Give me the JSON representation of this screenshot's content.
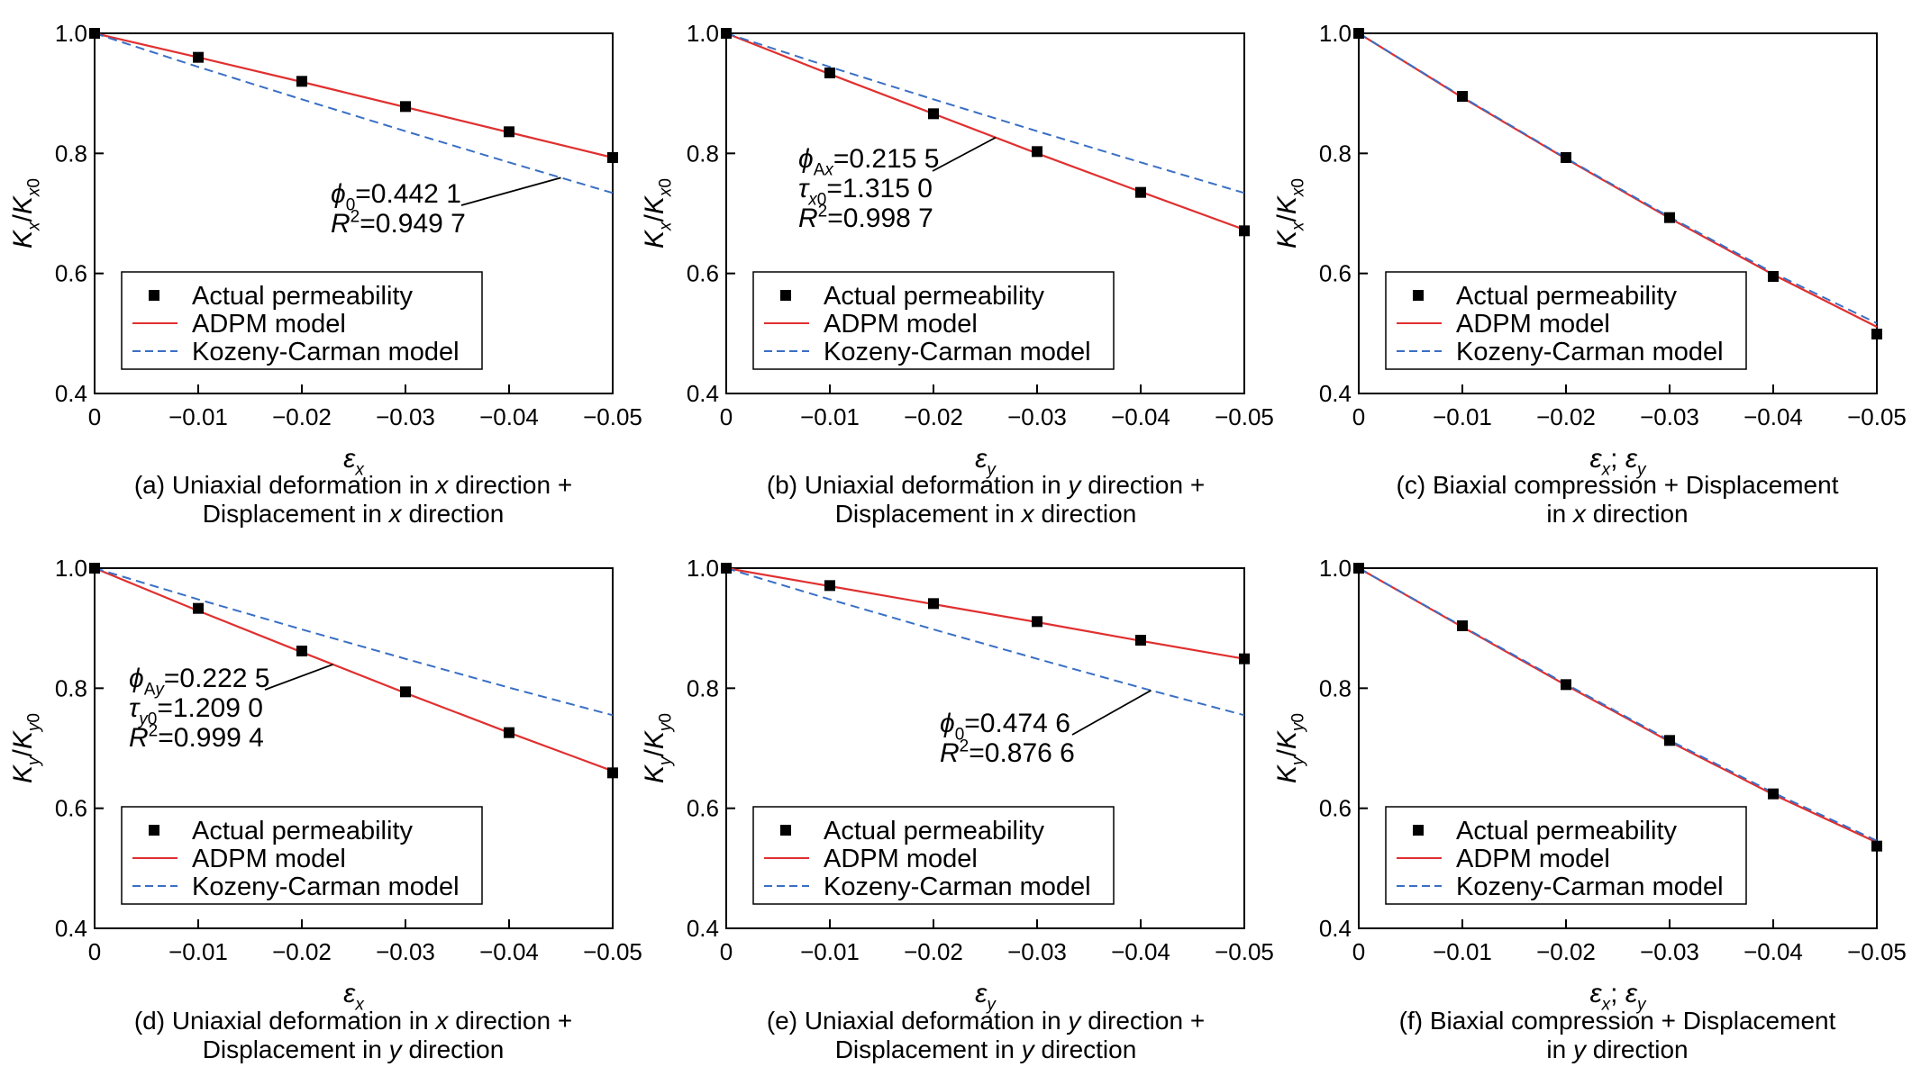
{
  "chart_data": [
    {
      "type": "line",
      "panel": "a",
      "caption_lines": [
        "(a) Uniaxial deformation in x direction +",
        "Displacement in x direction"
      ],
      "xlabel": "εx",
      "ylabel": "Kx/Kx0",
      "xlim": [
        0,
        -0.05
      ],
      "ylim": [
        0.4,
        1.0
      ],
      "x_ticks": [
        0,
        -0.01,
        -0.02,
        -0.03,
        -0.04,
        -0.05
      ],
      "x_tick_labels": [
        "0",
        "−0.01",
        "−0.02",
        "−0.03",
        "−0.04",
        "−0.05"
      ],
      "y_ticks": [
        0.4,
        0.6,
        0.8,
        1.0
      ],
      "y_tick_labels": [
        "0.4",
        "0.6",
        "0.8",
        "1.0"
      ],
      "x": [
        0,
        -0.01,
        -0.02,
        -0.03,
        -0.04,
        -0.05
      ],
      "series": [
        {
          "name": "Actual permeability",
          "kind": "scatter",
          "values": [
            1.0,
            0.96,
            0.92,
            0.878,
            0.836,
            0.793
          ]
        },
        {
          "name": "ADPM model",
          "kind": "solid",
          "values": [
            1.0,
            0.96,
            0.919,
            0.877,
            0.835,
            0.793
          ]
        },
        {
          "name": "Kozeny-Carman model",
          "kind": "dashed",
          "values": [
            1.0,
            0.944,
            0.89,
            0.837,
            0.785,
            0.734
          ]
        }
      ],
      "annotation": [
        "ϕ0=0.442 1",
        "R2=0.949 7"
      ],
      "legend_position": "lower-left"
    },
    {
      "type": "line",
      "panel": "b",
      "caption_lines": [
        "(b) Uniaxial deformation in y direction +",
        "Displacement in x direction"
      ],
      "xlabel": "εy",
      "ylabel": "Kx/Kx0",
      "xlim": [
        0,
        -0.05
      ],
      "ylim": [
        0.4,
        1.0
      ],
      "x_ticks": [
        0,
        -0.01,
        -0.02,
        -0.03,
        -0.04,
        -0.05
      ],
      "x_tick_labels": [
        "0",
        "−0.01",
        "−0.02",
        "−0.03",
        "−0.04",
        "−0.05"
      ],
      "y_ticks": [
        0.4,
        0.6,
        0.8,
        1.0
      ],
      "y_tick_labels": [
        "0.4",
        "0.6",
        "0.8",
        "1.0"
      ],
      "x": [
        0,
        -0.01,
        -0.02,
        -0.03,
        -0.04,
        -0.05
      ],
      "series": [
        {
          "name": "Actual permeability",
          "kind": "scatter",
          "values": [
            1.0,
            0.934,
            0.866,
            0.803,
            0.735,
            0.671
          ]
        },
        {
          "name": "ADPM model",
          "kind": "solid",
          "values": [
            1.0,
            0.932,
            0.866,
            0.8,
            0.736,
            0.673
          ]
        },
        {
          "name": "Kozeny-Carman model",
          "kind": "dashed",
          "values": [
            1.0,
            0.944,
            0.89,
            0.837,
            0.785,
            0.734
          ]
        }
      ],
      "annotation": [
        "ϕAx=0.215 5",
        "τx0=1.315 0",
        "R2=0.998 7"
      ],
      "legend_position": "lower-left"
    },
    {
      "type": "line",
      "panel": "c",
      "caption_lines": [
        "(c) Biaxial compression + Displacement",
        "in x direction"
      ],
      "xlabel": "εx; εy",
      "ylabel": "Kx/Kx0",
      "xlim": [
        0,
        -0.05
      ],
      "ylim": [
        0.4,
        1.0
      ],
      "x_ticks": [
        0,
        -0.01,
        -0.02,
        -0.03,
        -0.04,
        -0.05
      ],
      "x_tick_labels": [
        "0",
        "−0.01",
        "−0.02",
        "−0.03",
        "−0.04",
        "−0.05"
      ],
      "y_ticks": [
        0.4,
        0.6,
        0.8,
        1.0
      ],
      "y_tick_labels": [
        "0.4",
        "0.6",
        "0.8",
        "1.0"
      ],
      "x": [
        0,
        -0.01,
        -0.02,
        -0.03,
        -0.04,
        -0.05
      ],
      "series": [
        {
          "name": "Actual permeability",
          "kind": "scatter",
          "values": [
            1.0,
            0.895,
            0.793,
            0.693,
            0.595,
            0.499
          ]
        },
        {
          "name": "ADPM model",
          "kind": "solid",
          "values": [
            1.0,
            0.893,
            0.791,
            0.692,
            0.598,
            0.511
          ]
        },
        {
          "name": "Kozeny-Carman model",
          "kind": "dashed",
          "values": [
            1.0,
            0.894,
            0.792,
            0.694,
            0.601,
            0.517
          ]
        }
      ],
      "annotation": [],
      "legend_position": "lower-left"
    },
    {
      "type": "line",
      "panel": "d",
      "caption_lines": [
        "(d) Uniaxial deformation in x direction +",
        "Displacement in y direction"
      ],
      "xlabel": "εx",
      "ylabel": "Ky/Ky0",
      "xlim": [
        0,
        -0.05
      ],
      "ylim": [
        0.4,
        1.0
      ],
      "x_ticks": [
        0,
        -0.01,
        -0.02,
        -0.03,
        -0.04,
        -0.05
      ],
      "x_tick_labels": [
        "0",
        "−0.01",
        "−0.02",
        "−0.03",
        "−0.04",
        "−0.05"
      ],
      "y_ticks": [
        0.4,
        0.6,
        0.8,
        1.0
      ],
      "y_tick_labels": [
        "0.4",
        "0.6",
        "0.8",
        "1.0"
      ],
      "x": [
        0,
        -0.01,
        -0.02,
        -0.03,
        -0.04,
        -0.05
      ],
      "series": [
        {
          "name": "Actual permeability",
          "kind": "scatter",
          "values": [
            1.0,
            0.933,
            0.862,
            0.794,
            0.726,
            0.659
          ]
        },
        {
          "name": "ADPM model",
          "kind": "solid",
          "values": [
            1.0,
            0.929,
            0.86,
            0.792,
            0.726,
            0.662
          ]
        },
        {
          "name": "Kozeny-Carman model",
          "kind": "dashed",
          "values": [
            1.0,
            0.948,
            0.898,
            0.849,
            0.801,
            0.755
          ]
        }
      ],
      "annotation": [
        "ϕAy=0.222 5",
        "τy0=1.209 0",
        "R2=0.999 4"
      ],
      "legend_position": "lower-left"
    },
    {
      "type": "line",
      "panel": "e",
      "caption_lines": [
        "(e) Uniaxial deformation in y direction +",
        "Displacement in y direction"
      ],
      "xlabel": "εy",
      "ylabel": "Ky/Ky0",
      "xlim": [
        0,
        -0.05
      ],
      "ylim": [
        0.4,
        1.0
      ],
      "x_ticks": [
        0,
        -0.01,
        -0.02,
        -0.03,
        -0.04,
        -0.05
      ],
      "x_tick_labels": [
        "0",
        "−0.01",
        "−0.02",
        "−0.03",
        "−0.04",
        "−0.05"
      ],
      "y_ticks": [
        0.4,
        0.6,
        0.8,
        1.0
      ],
      "y_tick_labels": [
        "0.4",
        "0.6",
        "0.8",
        "1.0"
      ],
      "x": [
        0,
        -0.01,
        -0.02,
        -0.03,
        -0.04,
        -0.05
      ],
      "series": [
        {
          "name": "Actual permeability",
          "kind": "scatter",
          "values": [
            1.0,
            0.971,
            0.941,
            0.911,
            0.88,
            0.849
          ]
        },
        {
          "name": "ADPM model",
          "kind": "solid",
          "values": [
            1.0,
            0.97,
            0.94,
            0.91,
            0.879,
            0.849
          ]
        },
        {
          "name": "Kozeny-Carman model",
          "kind": "dashed",
          "values": [
            1.0,
            0.948,
            0.898,
            0.849,
            0.801,
            0.755
          ]
        }
      ],
      "annotation": [
        "ϕ0=0.474 6",
        "R2=0.876 6"
      ],
      "legend_position": "lower-left"
    },
    {
      "type": "line",
      "panel": "f",
      "caption_lines": [
        "(f) Biaxial compression + Displacement",
        "in y direction"
      ],
      "xlabel": "εx; εy",
      "ylabel": "Ky/Ky0",
      "xlim": [
        0,
        -0.05
      ],
      "ylim": [
        0.4,
        1.0
      ],
      "x_ticks": [
        0,
        -0.01,
        -0.02,
        -0.03,
        -0.04,
        -0.05
      ],
      "x_tick_labels": [
        "0",
        "−0.01",
        "−0.02",
        "−0.03",
        "−0.04",
        "−0.05"
      ],
      "y_ticks": [
        0.4,
        0.6,
        0.8,
        1.0
      ],
      "y_tick_labels": [
        "0.4",
        "0.6",
        "0.8",
        "1.0"
      ],
      "x": [
        0,
        -0.01,
        -0.02,
        -0.03,
        -0.04,
        -0.05
      ],
      "series": [
        {
          "name": "Actual permeability",
          "kind": "scatter",
          "values": [
            1.0,
            0.904,
            0.806,
            0.713,
            0.624,
            0.537
          ]
        },
        {
          "name": "ADPM model",
          "kind": "solid",
          "values": [
            1.0,
            0.902,
            0.805,
            0.711,
            0.623,
            0.543
          ]
        },
        {
          "name": "Kozeny-Carman model",
          "kind": "dashed",
          "values": [
            1.0,
            0.903,
            0.807,
            0.713,
            0.626,
            0.546
          ]
        }
      ],
      "annotation": [],
      "legend_position": "lower-left"
    }
  ],
  "colors": {
    "adpm": "#e03030",
    "kozeny": "#3a6fc4",
    "marker": "#000000",
    "axis": "#000000"
  }
}
